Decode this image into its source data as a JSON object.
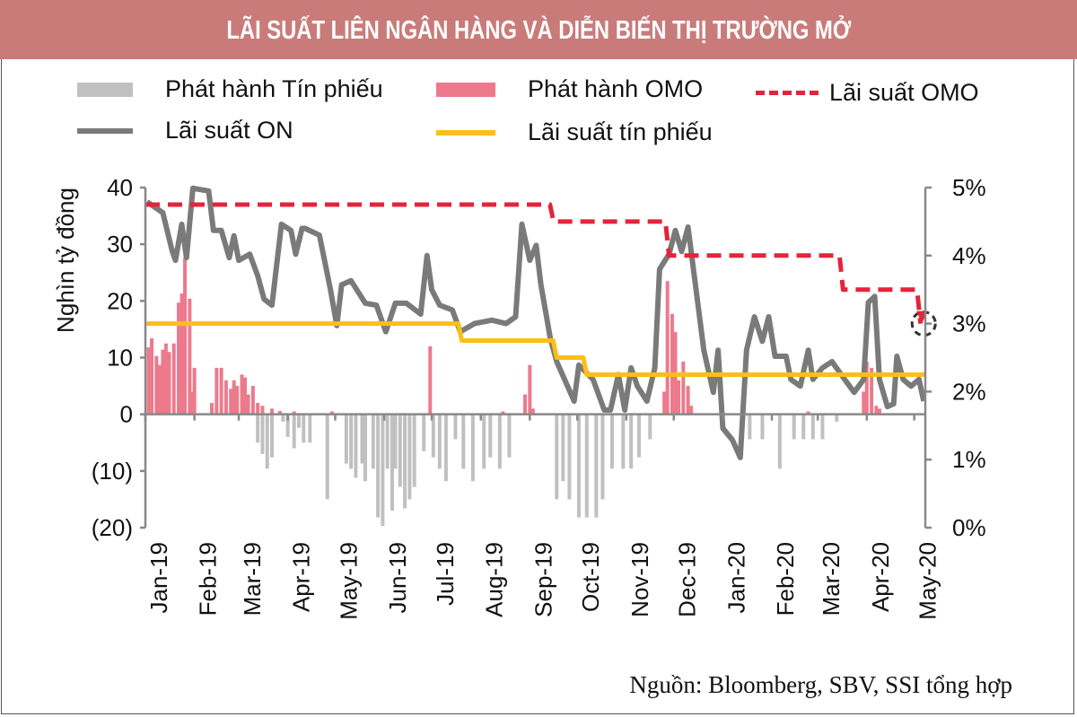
{
  "title": "LÃI SUẤT LIÊN NGÂN HÀNG VÀ DIỄN BIẾN THỊ TRƯỜNG MỞ",
  "source": "Nguồn: Bloomberg, SBV, SSI tổng hợp",
  "colors": {
    "title_bg": "#c97b7a",
    "tin_phieu_bar": "#c0c0c0",
    "omo_bar": "#ec7a8c",
    "on_line": "#7a7a7a",
    "tin_phieu_rate": "#fbbf16",
    "omo_rate": "#e3243b",
    "negative_label": "#e3243b"
  },
  "chart_data": {
    "type": "bar+line",
    "title": "LÃI SUẤT LIÊN NGÂN HÀNG VÀ DIỄN BIẾN THỊ TRƯỜNG MỞ",
    "ylabel": "Nghìn tỷ đồng",
    "legend_placement": "top",
    "grid": false,
    "xlim": [
      "2019-01-01",
      "2020-05-08"
    ],
    "x_ticks": [
      {
        "date": "2019-01-01",
        "label": "Jan-19"
      },
      {
        "date": "2019-02-01",
        "label": "Feb-19"
      },
      {
        "date": "2019-03-01",
        "label": "Mar-19"
      },
      {
        "date": "2019-04-01",
        "label": "Apr-19"
      },
      {
        "date": "2019-05-01",
        "label": "May-19"
      },
      {
        "date": "2019-06-01",
        "label": "Jun-19"
      },
      {
        "date": "2019-07-01",
        "label": "Jul-19"
      },
      {
        "date": "2019-08-01",
        "label": "Aug-19"
      },
      {
        "date": "2019-09-01",
        "label": "Sep-19"
      },
      {
        "date": "2019-10-01",
        "label": "Oct-19"
      },
      {
        "date": "2019-11-01",
        "label": "Nov-19"
      },
      {
        "date": "2019-12-01",
        "label": "Dec-19"
      },
      {
        "date": "2020-01-01",
        "label": "Jan-20"
      },
      {
        "date": "2020-02-01",
        "label": "Feb-20"
      },
      {
        "date": "2020-03-01",
        "label": "Mar-20"
      },
      {
        "date": "2020-04-01",
        "label": "Apr-20"
      },
      {
        "date": "2020-05-01",
        "label": "May-20"
      }
    ],
    "y_left": {
      "range": [
        -20,
        40
      ],
      "ticks": [
        {
          "v": 40,
          "label": "40"
        },
        {
          "v": 30,
          "label": "30"
        },
        {
          "v": 20,
          "label": "20"
        },
        {
          "v": 10,
          "label": "10"
        },
        {
          "v": 0,
          "label": "0"
        },
        {
          "v": -10,
          "label": "(10)"
        },
        {
          "v": -20,
          "label": "(20)"
        }
      ]
    },
    "y_right": {
      "range": [
        0,
        5
      ],
      "ticks": [
        {
          "v": 5,
          "label": "5%"
        },
        {
          "v": 4,
          "label": "4%"
        },
        {
          "v": 3,
          "label": "3%"
        },
        {
          "v": 2,
          "label": "2%"
        },
        {
          "v": 1,
          "label": "1%"
        },
        {
          "v": 0,
          "label": "0%"
        }
      ]
    },
    "legend": {
      "tin_phieu_bar": "Phát hành Tín phiếu",
      "omo_bar": "Phát hành OMO",
      "omo_rate": "Lãi suất OMO",
      "on_rate": "Lãi suất ON",
      "tin_phieu_rate": "Lãi suất tín phiếu"
    },
    "series": [
      {
        "name": "Phát hành Tín phiếu",
        "type": "bar",
        "axis": "left",
        "points": [
          [
            "2019-03-13",
            -5
          ],
          [
            "2019-03-16",
            -7
          ],
          [
            "2019-03-19",
            -9.6
          ],
          [
            "2019-03-22",
            -7.6
          ],
          [
            "2019-03-29",
            -1.3
          ],
          [
            "2019-04-01",
            -4
          ],
          [
            "2019-04-05",
            -6
          ],
          [
            "2019-04-08",
            -2.4
          ],
          [
            "2019-04-11",
            -5
          ],
          [
            "2019-04-15",
            -5
          ],
          [
            "2019-04-26",
            -15
          ],
          [
            "2019-05-08",
            -8.7
          ],
          [
            "2019-05-11",
            -9.6
          ],
          [
            "2019-05-14",
            -11.2
          ],
          [
            "2019-05-18",
            -8.7
          ],
          [
            "2019-05-20",
            -11.8
          ],
          [
            "2019-05-25",
            -9.6
          ],
          [
            "2019-05-28",
            -18.2
          ],
          [
            "2019-05-31",
            -19.7
          ],
          [
            "2019-06-03",
            -9.6
          ],
          [
            "2019-06-06",
            -17
          ],
          [
            "2019-06-08",
            -9.6
          ],
          [
            "2019-06-11",
            -12.8
          ],
          [
            "2019-06-14",
            -16.6
          ],
          [
            "2019-06-17",
            -15
          ],
          [
            "2019-06-20",
            -12.8
          ],
          [
            "2019-06-26",
            -6.5
          ],
          [
            "2019-07-02",
            -7.6
          ],
          [
            "2019-07-06",
            -9.6
          ],
          [
            "2019-07-10",
            -11.8
          ],
          [
            "2019-07-16",
            -4.4
          ],
          [
            "2019-07-21",
            -9.6
          ],
          [
            "2019-07-27",
            -11.8
          ],
          [
            "2019-08-03",
            -9.6
          ],
          [
            "2019-08-07",
            -7.6
          ],
          [
            "2019-08-13",
            -9.6
          ],
          [
            "2019-08-19",
            -7.6
          ],
          [
            "2019-09-18",
            -15
          ],
          [
            "2019-09-22",
            -11.8
          ],
          [
            "2019-09-26",
            -15
          ],
          [
            "2019-10-02",
            -18.2
          ],
          [
            "2019-10-07",
            -18.2
          ],
          [
            "2019-10-13",
            -18.2
          ],
          [
            "2019-10-17",
            -15
          ],
          [
            "2019-10-23",
            -9.6
          ],
          [
            "2019-10-30",
            -9.6
          ],
          [
            "2019-11-04",
            -9.6
          ],
          [
            "2019-11-09",
            -7.6
          ],
          [
            "2019-11-16",
            -4.4
          ],
          [
            "2020-01-18",
            -4.4
          ],
          [
            "2020-01-26",
            -4.4
          ],
          [
            "2020-02-06",
            -9.6
          ],
          [
            "2020-02-15",
            -4.4
          ],
          [
            "2020-02-21",
            -4.4
          ],
          [
            "2020-02-27",
            -4.4
          ],
          [
            "2020-03-04",
            -4.4
          ],
          [
            "2020-03-13",
            -1.3
          ]
        ]
      },
      {
        "name": "Phát hành OMO",
        "type": "bar",
        "axis": "left",
        "points": [
          [
            "2019-01-03",
            11.8
          ],
          [
            "2019-01-05",
            13.4
          ],
          [
            "2019-01-08",
            10.3
          ],
          [
            "2019-01-10",
            8.7
          ],
          [
            "2019-01-12",
            11.4
          ],
          [
            "2019-01-14",
            12.5
          ],
          [
            "2019-01-16",
            11
          ],
          [
            "2019-01-19",
            12.5
          ],
          [
            "2019-01-22",
            19.7
          ],
          [
            "2019-01-24",
            21.3
          ],
          [
            "2019-01-26",
            27.6
          ],
          [
            "2019-01-29",
            20.4
          ],
          [
            "2019-01-31",
            4
          ],
          [
            "2019-02-01",
            8.2
          ],
          [
            "2019-02-12",
            2
          ],
          [
            "2019-02-15",
            8.2
          ],
          [
            "2019-02-18",
            8.2
          ],
          [
            "2019-02-21",
            6
          ],
          [
            "2019-02-24",
            4.5
          ],
          [
            "2019-02-26",
            6
          ],
          [
            "2019-02-28",
            5
          ],
          [
            "2019-03-03",
            7
          ],
          [
            "2019-03-05",
            6.5
          ],
          [
            "2019-03-07",
            3.5
          ],
          [
            "2019-03-10",
            5
          ],
          [
            "2019-03-13",
            2
          ],
          [
            "2019-03-16",
            1.5
          ],
          [
            "2019-03-22",
            1
          ],
          [
            "2019-03-27",
            0.6
          ],
          [
            "2019-04-05",
            0.5
          ],
          [
            "2019-04-29",
            0.5
          ],
          [
            "2019-06-30",
            12
          ],
          [
            "2019-08-15",
            0.5
          ],
          [
            "2019-08-29",
            3.5
          ],
          [
            "2019-09-01",
            8.7
          ],
          [
            "2019-09-03",
            1
          ],
          [
            "2019-11-25",
            4
          ],
          [
            "2019-11-27",
            23.5
          ],
          [
            "2019-11-30",
            17.7
          ],
          [
            "2019-12-02",
            14.5
          ],
          [
            "2019-12-04",
            6
          ],
          [
            "2019-12-07",
            9.3
          ],
          [
            "2019-12-10",
            5
          ],
          [
            "2019-12-12",
            1.5
          ],
          [
            "2020-02-24",
            0.5
          ],
          [
            "2020-03-30",
            4
          ],
          [
            "2020-04-01",
            9.3
          ],
          [
            "2020-04-04",
            8.2
          ],
          [
            "2020-04-07",
            1.5
          ],
          [
            "2020-04-09",
            1
          ]
        ]
      },
      {
        "name": "Lãi suất ON",
        "type": "line",
        "axis": "right",
        "unit": "%",
        "points": [
          [
            "2019-01-02",
            4.79
          ],
          [
            "2019-01-12",
            4.63
          ],
          [
            "2019-01-18",
            4.06
          ],
          [
            "2019-01-20",
            3.93
          ],
          [
            "2019-01-24",
            4.46
          ],
          [
            "2019-01-27",
            3.97
          ],
          [
            "2019-01-31",
            4.99
          ],
          [
            "2019-02-10",
            4.95
          ],
          [
            "2019-02-13",
            4.37
          ],
          [
            "2019-02-18",
            4.37
          ],
          [
            "2019-02-23",
            3.97
          ],
          [
            "2019-02-26",
            4.29
          ],
          [
            "2019-03-01",
            3.93
          ],
          [
            "2019-03-08",
            4.02
          ],
          [
            "2019-03-13",
            3.7
          ],
          [
            "2019-03-17",
            3.36
          ],
          [
            "2019-03-22",
            3.27
          ],
          [
            "2019-03-28",
            4.46
          ],
          [
            "2019-04-03",
            4.37
          ],
          [
            "2019-04-06",
            4.02
          ],
          [
            "2019-04-10",
            4.4
          ],
          [
            "2019-04-12",
            4.4
          ],
          [
            "2019-04-21",
            4.3
          ],
          [
            "2019-04-28",
            3.5
          ],
          [
            "2019-05-02",
            2.97
          ],
          [
            "2019-05-05",
            3.57
          ],
          [
            "2019-05-11",
            3.63
          ],
          [
            "2019-05-20",
            3.3
          ],
          [
            "2019-05-27",
            3.27
          ],
          [
            "2019-06-02",
            2.88
          ],
          [
            "2019-06-08",
            3.3
          ],
          [
            "2019-06-15",
            3.3
          ],
          [
            "2019-06-24",
            3.14
          ],
          [
            "2019-06-28",
            4.0
          ],
          [
            "2019-07-01",
            3.5
          ],
          [
            "2019-07-06",
            3.27
          ],
          [
            "2019-07-14",
            3.2
          ],
          [
            "2019-07-19",
            2.88
          ],
          [
            "2019-07-28",
            3.0
          ],
          [
            "2019-08-08",
            3.05
          ],
          [
            "2019-08-17",
            3.0
          ],
          [
            "2019-08-23",
            3.1
          ],
          [
            "2019-08-27",
            4.46
          ],
          [
            "2019-09-01",
            3.93
          ],
          [
            "2019-09-05",
            4.15
          ],
          [
            "2019-09-08",
            3.57
          ],
          [
            "2019-09-14",
            2.78
          ],
          [
            "2019-09-18",
            2.44
          ],
          [
            "2019-09-29",
            1.86
          ],
          [
            "2019-10-02",
            2.39
          ],
          [
            "2019-10-11",
            2.18
          ],
          [
            "2019-10-18",
            1.73
          ],
          [
            "2019-10-22",
            1.73
          ],
          [
            "2019-10-27",
            2.25
          ],
          [
            "2019-10-31",
            1.73
          ],
          [
            "2019-11-04",
            2.35
          ],
          [
            "2019-11-08",
            2.08
          ],
          [
            "2019-11-14",
            1.86
          ],
          [
            "2019-11-19",
            2.35
          ],
          [
            "2019-11-22",
            3.8
          ],
          [
            "2019-11-28",
            4.02
          ],
          [
            "2019-12-02",
            4.37
          ],
          [
            "2019-12-06",
            4.06
          ],
          [
            "2019-12-10",
            4.42
          ],
          [
            "2019-12-14",
            3.7
          ],
          [
            "2019-12-20",
            2.61
          ],
          [
            "2019-12-26",
            1.99
          ],
          [
            "2019-12-29",
            2.61
          ],
          [
            "2020-01-01",
            1.46
          ],
          [
            "2020-01-07",
            1.29
          ],
          [
            "2020-01-12",
            1.03
          ],
          [
            "2020-01-16",
            2.61
          ],
          [
            "2020-01-21",
            3.1
          ],
          [
            "2020-01-26",
            2.74
          ],
          [
            "2020-01-30",
            3.1
          ],
          [
            "2020-02-03",
            2.52
          ],
          [
            "2020-02-10",
            2.52
          ],
          [
            "2020-02-13",
            2.18
          ],
          [
            "2020-02-19",
            2.08
          ],
          [
            "2020-02-24",
            2.61
          ],
          [
            "2020-02-27",
            2.18
          ],
          [
            "2020-03-04",
            2.35
          ],
          [
            "2020-03-10",
            2.44
          ],
          [
            "2020-03-18",
            2.18
          ],
          [
            "2020-03-24",
            1.99
          ],
          [
            "2020-03-30",
            2.18
          ],
          [
            "2020-04-02",
            3.31
          ],
          [
            "2020-04-06",
            3.4
          ],
          [
            "2020-04-09",
            2.18
          ],
          [
            "2020-04-14",
            1.78
          ],
          [
            "2020-04-18",
            1.82
          ],
          [
            "2020-04-20",
            2.52
          ],
          [
            "2020-04-24",
            2.18
          ],
          [
            "2020-04-29",
            2.08
          ],
          [
            "2020-05-04",
            2.18
          ],
          [
            "2020-05-07",
            1.86
          ]
        ]
      },
      {
        "name": "Lãi suất tín phiếu",
        "type": "step",
        "axis": "right",
        "unit": "%",
        "points": [
          [
            "2019-01-01",
            3.0
          ],
          [
            "2019-07-20",
            2.75
          ],
          [
            "2019-09-18",
            2.5
          ],
          [
            "2019-10-07",
            2.25
          ],
          [
            "2020-05-08",
            2.25
          ]
        ]
      },
      {
        "name": "Lãi suất OMO",
        "type": "step-dashed",
        "axis": "right",
        "unit": "%",
        "points": [
          [
            "2019-01-01",
            4.75
          ],
          [
            "2019-09-16",
            4.5
          ],
          [
            "2019-11-28",
            4.0
          ],
          [
            "2020-03-17",
            3.5
          ],
          [
            "2020-05-05",
            3.0
          ]
        ]
      }
    ],
    "annotation": {
      "type": "dashed-circle",
      "date": "2020-05-07",
      "value": 3.0
    }
  }
}
